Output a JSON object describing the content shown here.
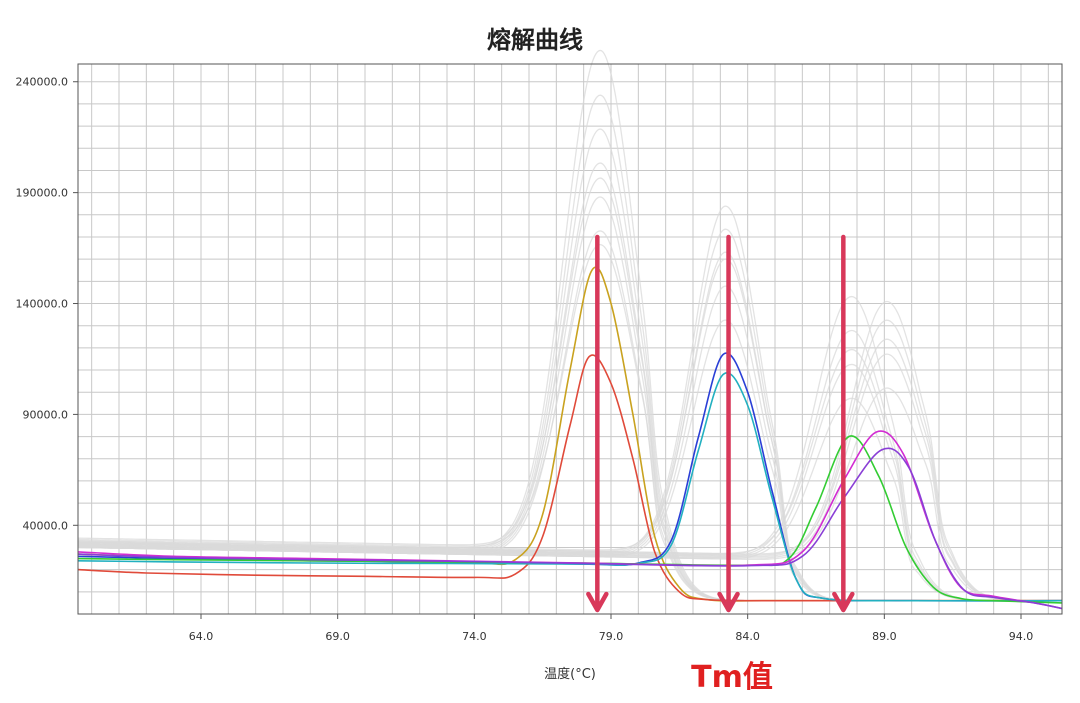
{
  "chart_data": {
    "type": "line",
    "title": "熔解曲线",
    "xlabel": "温度(°C)",
    "ylabel": "",
    "xlim": [
      59.5,
      95.5
    ],
    "ylim": [
      0,
      248000
    ],
    "grid": true,
    "x_ticks": [
      64.0,
      69.0,
      74.0,
      79.0,
      84.0,
      89.0,
      94.0
    ],
    "x_tick_labels": [
      "64.0",
      "69.0",
      "74.0",
      "79.0",
      "84.0",
      "89.0",
      "94.0"
    ],
    "y_ticks": [
      40000,
      90000,
      140000,
      190000,
      240000
    ],
    "y_tick_labels": [
      "40000.0",
      "90000.0",
      "140000.0",
      "190000.0",
      "240000.0"
    ],
    "series": [
      {
        "color": "#c9a21f",
        "x": [
          59.5,
          62,
          66,
          70,
          74,
          75.5,
          76.5,
          77.5,
          78.3,
          79,
          79.8,
          80.6,
          81.5,
          82.5,
          85,
          90,
          95.5
        ],
        "y": [
          27000,
          26000,
          25000,
          24000,
          23000,
          24500,
          45000,
          110000,
          155000,
          140000,
          90000,
          35000,
          12000,
          6500,
          6000,
          6000,
          6000
        ]
      },
      {
        "color": "#e04a3a",
        "x": [
          59.5,
          62,
          66,
          70,
          74,
          75.5,
          76.5,
          77.5,
          78.2,
          79,
          79.8,
          80.6,
          81.5,
          82.5,
          85,
          90,
          95.5
        ],
        "y": [
          20000,
          18500,
          17500,
          17000,
          16500,
          18000,
          35000,
          85000,
          116000,
          104000,
          70000,
          28000,
          10000,
          6500,
          6000,
          6000,
          6000
        ]
      },
      {
        "color": "#2a3fd6",
        "x": [
          59.5,
          63,
          68,
          73,
          78,
          80,
          81.2,
          82.2,
          83.1,
          84,
          84.9,
          85.8,
          86.8,
          90,
          95.5
        ],
        "y": [
          26000,
          25000,
          24000,
          23500,
          22500,
          23000,
          33000,
          80000,
          117000,
          100000,
          55000,
          15000,
          7000,
          6000,
          6000
        ]
      },
      {
        "color": "#22b0c0",
        "x": [
          59.5,
          63,
          68,
          73,
          78,
          80,
          81.2,
          82.2,
          83.1,
          84,
          84.9,
          85.8,
          86.8,
          90,
          95.5
        ],
        "y": [
          24000,
          23500,
          23000,
          22800,
          22500,
          22800,
          31000,
          74000,
          108000,
          94000,
          52000,
          15000,
          7000,
          6000,
          6000
        ]
      },
      {
        "color": "#33cc33",
        "x": [
          59.5,
          63,
          68,
          73,
          78,
          84,
          85.5,
          86.5,
          87.7,
          88.8,
          89.8,
          90.8,
          91.8,
          93,
          95.5
        ],
        "y": [
          25000,
          24500,
          24000,
          23500,
          23000,
          22000,
          25000,
          48000,
          80000,
          62000,
          30000,
          12000,
          7000,
          6000,
          5000
        ]
      },
      {
        "color": "#d22cd2",
        "x": [
          59.5,
          63,
          68,
          73,
          78,
          84,
          86,
          87.5,
          88.7,
          89.7,
          90.8,
          91.8,
          93,
          94.5,
          95.5
        ],
        "y": [
          28000,
          26000,
          25000,
          24000,
          23000,
          22000,
          28000,
          60000,
          82000,
          72000,
          35000,
          12000,
          8000,
          5000,
          2500
        ]
      },
      {
        "color": "#8a3fd6",
        "x": [
          59.5,
          63,
          68,
          73,
          78,
          84,
          86,
          87.5,
          88.9,
          89.9,
          90.9,
          91.9,
          93,
          94.5,
          95.5
        ],
        "y": [
          27000,
          25500,
          24500,
          23800,
          22800,
          21800,
          26000,
          52000,
          74000,
          66000,
          32000,
          11000,
          7500,
          5000,
          2500
        ]
      }
    ],
    "background_series_color": "#d9d9d9",
    "annotations": [
      {
        "text": "Tm值",
        "color": "#e02020"
      }
    ],
    "tm_markers": [
      {
        "x": 78.5,
        "color": "#d8385a"
      },
      {
        "x": 83.3,
        "color": "#d8385a"
      },
      {
        "x": 87.5,
        "color": "#d8385a"
      }
    ]
  }
}
